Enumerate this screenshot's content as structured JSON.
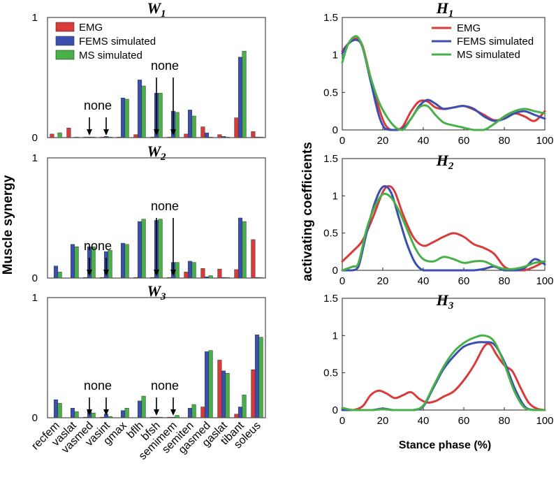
{
  "figure": {
    "left_ylabel": "Muscle synergy",
    "right_ylabel": "activating coefficients",
    "right_xlabel": "Stance phase (%)"
  },
  "chart_data": [
    {
      "type": "bar",
      "title": "W",
      "title_sub": "1",
      "categories": [
        "recfem",
        "vaslat",
        "vasmed",
        "vasint",
        "gmax",
        "bflh",
        "bfsh",
        "semimem",
        "semiten",
        "gasmed",
        "gaslat",
        "tibant",
        "soleus"
      ],
      "ylim": [
        0,
        1
      ],
      "yticks": [
        "0",
        "1"
      ],
      "series": [
        {
          "name": "EMG",
          "color": "#d93a3a",
          "values": [
            0.03,
            0.08,
            0.005,
            0.005,
            0.005,
            0.025,
            0.005,
            0.005,
            0.03,
            0.09,
            0.025,
            0.165,
            0.05
          ]
        },
        {
          "name": "FEMS simulated",
          "color": "#3a4fb0",
          "values": [
            0.0,
            0.0,
            0.005,
            0.01,
            0.33,
            0.48,
            0.37,
            0.22,
            0.23,
            0.04,
            0.01,
            0.67,
            0.005
          ]
        },
        {
          "name": "MS simulated",
          "color": "#48b048",
          "values": [
            0.04,
            0.005,
            0.005,
            0.005,
            0.32,
            0.43,
            0.37,
            0.21,
            0.18,
            0.005,
            0.005,
            0.72,
            0.005
          ]
        }
      ],
      "annotations": [
        {
          "text": "none",
          "categories": [
            "vasmed",
            "vasint"
          ]
        },
        {
          "text": "none",
          "categories": [
            "bfsh",
            "semimem"
          ]
        }
      ]
    },
    {
      "type": "bar",
      "title": "W",
      "title_sub": "2",
      "categories": [
        "recfem",
        "vaslat",
        "vasmed",
        "vasint",
        "gmax",
        "bflh",
        "bfsh",
        "semimem",
        "semiten",
        "gasmed",
        "gaslat",
        "tibant",
        "soleus"
      ],
      "ylim": [
        0,
        1
      ],
      "yticks": [
        "0",
        "1"
      ],
      "series": [
        {
          "name": "EMG",
          "color": "#d93a3a",
          "values": [
            0.0,
            0.0,
            0.005,
            0.005,
            0.0,
            0.005,
            0.005,
            0.005,
            0.05,
            0.08,
            0.075,
            0.07,
            0.32
          ]
        },
        {
          "name": "FEMS simulated",
          "color": "#3a4fb0",
          "values": [
            0.1,
            0.28,
            0.26,
            0.22,
            0.29,
            0.47,
            0.48,
            0.13,
            0.14,
            0.01,
            0.005,
            0.5,
            0.005
          ]
        },
        {
          "name": "MS simulated",
          "color": "#48b048",
          "values": [
            0.05,
            0.26,
            0.26,
            0.23,
            0.28,
            0.49,
            0.49,
            0.13,
            0.13,
            0.02,
            0.005,
            0.47,
            0.005
          ]
        }
      ],
      "annotations": [
        {
          "text": "none",
          "categories": [
            "vasmed",
            "vasint"
          ]
        },
        {
          "text": "none",
          "categories": [
            "bfsh",
            "semimem"
          ]
        }
      ]
    },
    {
      "type": "bar",
      "title": "W",
      "title_sub": "3",
      "categories": [
        "recfem",
        "vaslat",
        "vasmed",
        "vasint",
        "gmax",
        "bflh",
        "bfsh",
        "semimem",
        "semiten",
        "gasmed",
        "gaslat",
        "tibant",
        "soleus"
      ],
      "ylim": [
        0,
        1
      ],
      "yticks": [
        "0",
        "1"
      ],
      "series": [
        {
          "name": "EMG",
          "color": "#d93a3a",
          "values": [
            0.0,
            0.0,
            0.005,
            0.005,
            0.0,
            0.0,
            0.005,
            0.005,
            0.0,
            0.09,
            0.48,
            0.03,
            0.4
          ]
        },
        {
          "name": "FEMS simulated",
          "color": "#3a4fb0",
          "values": [
            0.15,
            0.08,
            0.06,
            0.03,
            0.06,
            0.14,
            0.005,
            0.005,
            0.08,
            0.55,
            0.39,
            0.09,
            0.69
          ]
        },
        {
          "name": "MS simulated",
          "color": "#48b048",
          "values": [
            0.12,
            0.05,
            0.04,
            0.01,
            0.08,
            0.18,
            0.005,
            0.02,
            0.11,
            0.56,
            0.37,
            0.19,
            0.67
          ]
        }
      ],
      "annotations": [
        {
          "text": "none",
          "categories": [
            "vasmed",
            "vasint"
          ]
        },
        {
          "text": "none",
          "categories": [
            "bfsh",
            "semimem"
          ]
        }
      ]
    },
    {
      "type": "line",
      "title": "H",
      "title_sub": "1",
      "xlim": [
        0,
        100
      ],
      "ylim": [
        0,
        1.5
      ],
      "xticks": [
        0,
        20,
        40,
        60,
        80,
        100
      ],
      "yticks": [
        0,
        0.5,
        1,
        1.5
      ],
      "ytick_labels": [
        "0",
        "0.5",
        "1",
        "1.5"
      ],
      "show_xlabel": false,
      "series": [
        {
          "name": "EMG",
          "color": "#d93a3a",
          "x": [
            0,
            3,
            7,
            10,
            14,
            18,
            21,
            24,
            27,
            30,
            34,
            38,
            42,
            46,
            50,
            55,
            60,
            65,
            70,
            75,
            80,
            85,
            90,
            95,
            100
          ],
          "y": [
            1.05,
            1.15,
            1.22,
            1.12,
            0.7,
            0.3,
            0.08,
            0.0,
            0.0,
            0.05,
            0.25,
            0.38,
            0.38,
            0.3,
            0.28,
            0.3,
            0.32,
            0.27,
            0.2,
            0.13,
            0.15,
            0.22,
            0.18,
            0.12,
            0.25
          ]
        },
        {
          "name": "FEMS simulated",
          "color": "#3a4fb0",
          "x": [
            0,
            3,
            7,
            10,
            14,
            18,
            21,
            24,
            27,
            30,
            34,
            38,
            42,
            46,
            50,
            55,
            60,
            65,
            70,
            75,
            80,
            85,
            90,
            95,
            100
          ],
          "y": [
            1.02,
            1.15,
            1.2,
            1.1,
            0.65,
            0.2,
            0.02,
            0.0,
            0.0,
            0.02,
            0.15,
            0.32,
            0.4,
            0.35,
            0.28,
            0.3,
            0.32,
            0.28,
            0.18,
            0.12,
            0.15,
            0.22,
            0.25,
            0.2,
            0.15
          ]
        },
        {
          "name": "MS simulated",
          "color": "#48b048",
          "x": [
            0,
            3,
            7,
            10,
            14,
            18,
            21,
            24,
            27,
            30,
            34,
            38,
            42,
            46,
            50,
            55,
            60,
            65,
            70,
            75,
            80,
            85,
            90,
            95,
            100
          ],
          "y": [
            0.9,
            1.15,
            1.25,
            1.1,
            0.7,
            0.38,
            0.22,
            0.1,
            0.02,
            0.0,
            0.15,
            0.3,
            0.32,
            0.2,
            0.1,
            0.06,
            0.03,
            0.0,
            0.0,
            0.08,
            0.18,
            0.25,
            0.28,
            0.25,
            0.22
          ]
        }
      ],
      "legend": {
        "position": "top-right"
      }
    },
    {
      "type": "line",
      "title": "H",
      "title_sub": "2",
      "xlim": [
        0,
        100
      ],
      "ylim": [
        0,
        1.5
      ],
      "xticks": [
        0,
        20,
        40,
        60,
        80,
        100
      ],
      "yticks": [
        0,
        0.5,
        1,
        1.5
      ],
      "ytick_labels": [
        "0",
        "0.5",
        "1",
        "1.5"
      ],
      "show_xlabel": false,
      "series": [
        {
          "name": "EMG",
          "color": "#d93a3a",
          "x": [
            0,
            5,
            10,
            15,
            20,
            23,
            26,
            30,
            35,
            40,
            45,
            50,
            55,
            60,
            65,
            70,
            75,
            80,
            85,
            90,
            95,
            100
          ],
          "y": [
            0.12,
            0.25,
            0.4,
            0.7,
            1.05,
            1.13,
            1.05,
            0.75,
            0.45,
            0.33,
            0.38,
            0.45,
            0.5,
            0.45,
            0.35,
            0.3,
            0.22,
            0.05,
            0.0,
            0.0,
            0.05,
            0.12
          ]
        },
        {
          "name": "FEMS simulated",
          "color": "#3a4fb0",
          "x": [
            0,
            5,
            8,
            12,
            16,
            20,
            24,
            28,
            32,
            36,
            40,
            45,
            50,
            55,
            60,
            65,
            70,
            75,
            80,
            85,
            90,
            95,
            100
          ],
          "y": [
            0.0,
            0.0,
            0.05,
            0.5,
            0.9,
            1.12,
            1.05,
            0.7,
            0.35,
            0.1,
            0.0,
            0.0,
            0.0,
            0.0,
            0.0,
            0.0,
            0.02,
            0.05,
            0.0,
            0.0,
            0.03,
            0.15,
            0.08
          ]
        },
        {
          "name": "MS simulated",
          "color": "#48b048",
          "x": [
            0,
            5,
            8,
            12,
            16,
            20,
            24,
            28,
            32,
            36,
            40,
            45,
            50,
            55,
            60,
            65,
            70,
            75,
            80,
            85,
            90,
            95,
            100
          ],
          "y": [
            0.0,
            0.05,
            0.1,
            0.55,
            0.85,
            1.02,
            0.98,
            0.8,
            0.55,
            0.3,
            0.15,
            0.12,
            0.18,
            0.15,
            0.1,
            0.12,
            0.12,
            0.06,
            0.02,
            0.02,
            0.05,
            0.1,
            0.12
          ]
        }
      ]
    },
    {
      "type": "line",
      "title": "H",
      "title_sub": "3",
      "xlim": [
        0,
        100
      ],
      "ylim": [
        0,
        1.5
      ],
      "xticks": [
        0,
        20,
        40,
        60,
        80,
        100
      ],
      "yticks": [
        0,
        0.5,
        1,
        1.5
      ],
      "ytick_labels": [
        "0",
        "0.5",
        "1",
        "1.5"
      ],
      "show_xlabel": true,
      "series": [
        {
          "name": "EMG",
          "color": "#d93a3a",
          "x": [
            0,
            5,
            10,
            14,
            18,
            22,
            26,
            30,
            34,
            38,
            42,
            46,
            50,
            55,
            60,
            65,
            70,
            73,
            76,
            80,
            84,
            88,
            92,
            96,
            100
          ],
          "y": [
            0.02,
            0.0,
            0.05,
            0.2,
            0.26,
            0.22,
            0.16,
            0.2,
            0.24,
            0.15,
            0.1,
            0.12,
            0.18,
            0.25,
            0.4,
            0.6,
            0.85,
            0.88,
            0.75,
            0.6,
            0.52,
            0.3,
            0.1,
            0.02,
            0.0
          ]
        },
        {
          "name": "FEMS simulated",
          "color": "#3a4fb0",
          "x": [
            0,
            5,
            10,
            15,
            20,
            25,
            30,
            35,
            40,
            45,
            50,
            55,
            60,
            65,
            70,
            75,
            80,
            85,
            90,
            95,
            100
          ],
          "y": [
            0.0,
            0.0,
            0.0,
            0.0,
            0.02,
            0.0,
            0.0,
            0.0,
            0.05,
            0.3,
            0.55,
            0.72,
            0.85,
            0.9,
            0.91,
            0.88,
            0.65,
            0.3,
            0.05,
            0.0,
            0.0
          ]
        },
        {
          "name": "MS simulated",
          "color": "#48b048",
          "x": [
            0,
            5,
            10,
            15,
            20,
            25,
            30,
            35,
            40,
            45,
            50,
            55,
            60,
            65,
            70,
            75,
            80,
            85,
            90,
            95,
            100
          ],
          "y": [
            0.03,
            0.0,
            0.0,
            0.0,
            0.01,
            0.0,
            0.0,
            0.0,
            0.06,
            0.32,
            0.58,
            0.78,
            0.9,
            0.97,
            1.0,
            0.92,
            0.62,
            0.25,
            0.03,
            0.0,
            0.0
          ]
        }
      ]
    }
  ]
}
